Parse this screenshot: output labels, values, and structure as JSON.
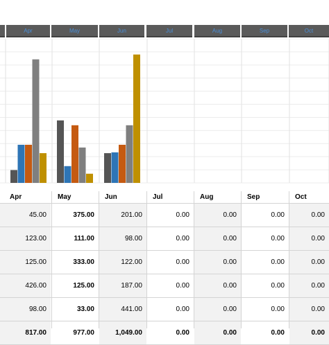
{
  "toolbar": {
    "month_buttons": [
      "",
      "Apr",
      "May",
      "Jun",
      "Jul",
      "Aug",
      "Sep",
      "Oct"
    ]
  },
  "chart_data": {
    "type": "bar",
    "categories": [
      "Apr",
      "May",
      "Jun",
      "Jul",
      "Aug",
      "Sep",
      "Oct"
    ],
    "series": [
      {
        "values": [
          98,
          477,
          227,
          0,
          0,
          0,
          0
        ],
        "color": "#555555"
      },
      {
        "values": [
          291,
          128,
          233,
          0,
          0,
          0,
          0
        ],
        "color": "#2e75b6"
      },
      {
        "values": [
          291,
          440,
          291,
          0,
          0,
          0,
          0
        ],
        "color": "#c55a11"
      },
      {
        "values": [
          943,
          270,
          440,
          0,
          0,
          0,
          0
        ],
        "color": "#7f7f7f"
      },
      {
        "values": [
          227,
          70,
          980,
          0,
          0,
          0,
          0
        ],
        "color": "#bf9000"
      }
    ],
    "ylim": [
      0,
      1100
    ],
    "grid": true
  },
  "table": {
    "headers": [
      "Apr",
      "May",
      "Jun",
      "Jul",
      "Aug",
      "Sep",
      "Oct"
    ],
    "rows": [
      [
        "45.00",
        "375.00",
        "201.00",
        "0.00",
        "0.00",
        "0.00",
        "0.00"
      ],
      [
        "123.00",
        "111.00",
        "98.00",
        "0.00",
        "0.00",
        "0.00",
        "0.00"
      ],
      [
        "125.00",
        "333.00",
        "122.00",
        "0.00",
        "0.00",
        "0.00",
        "0.00"
      ],
      [
        "426.00",
        "125.00",
        "187.00",
        "0.00",
        "0.00",
        "0.00",
        "0.00"
      ],
      [
        "98.00",
        "33.00",
        "441.00",
        "0.00",
        "0.00",
        "0.00",
        "0.00"
      ]
    ],
    "totals": [
      "817.00",
      "977.00",
      "1,049.00",
      "0.00",
      "0.00",
      "0.00",
      "0.00"
    ]
  }
}
